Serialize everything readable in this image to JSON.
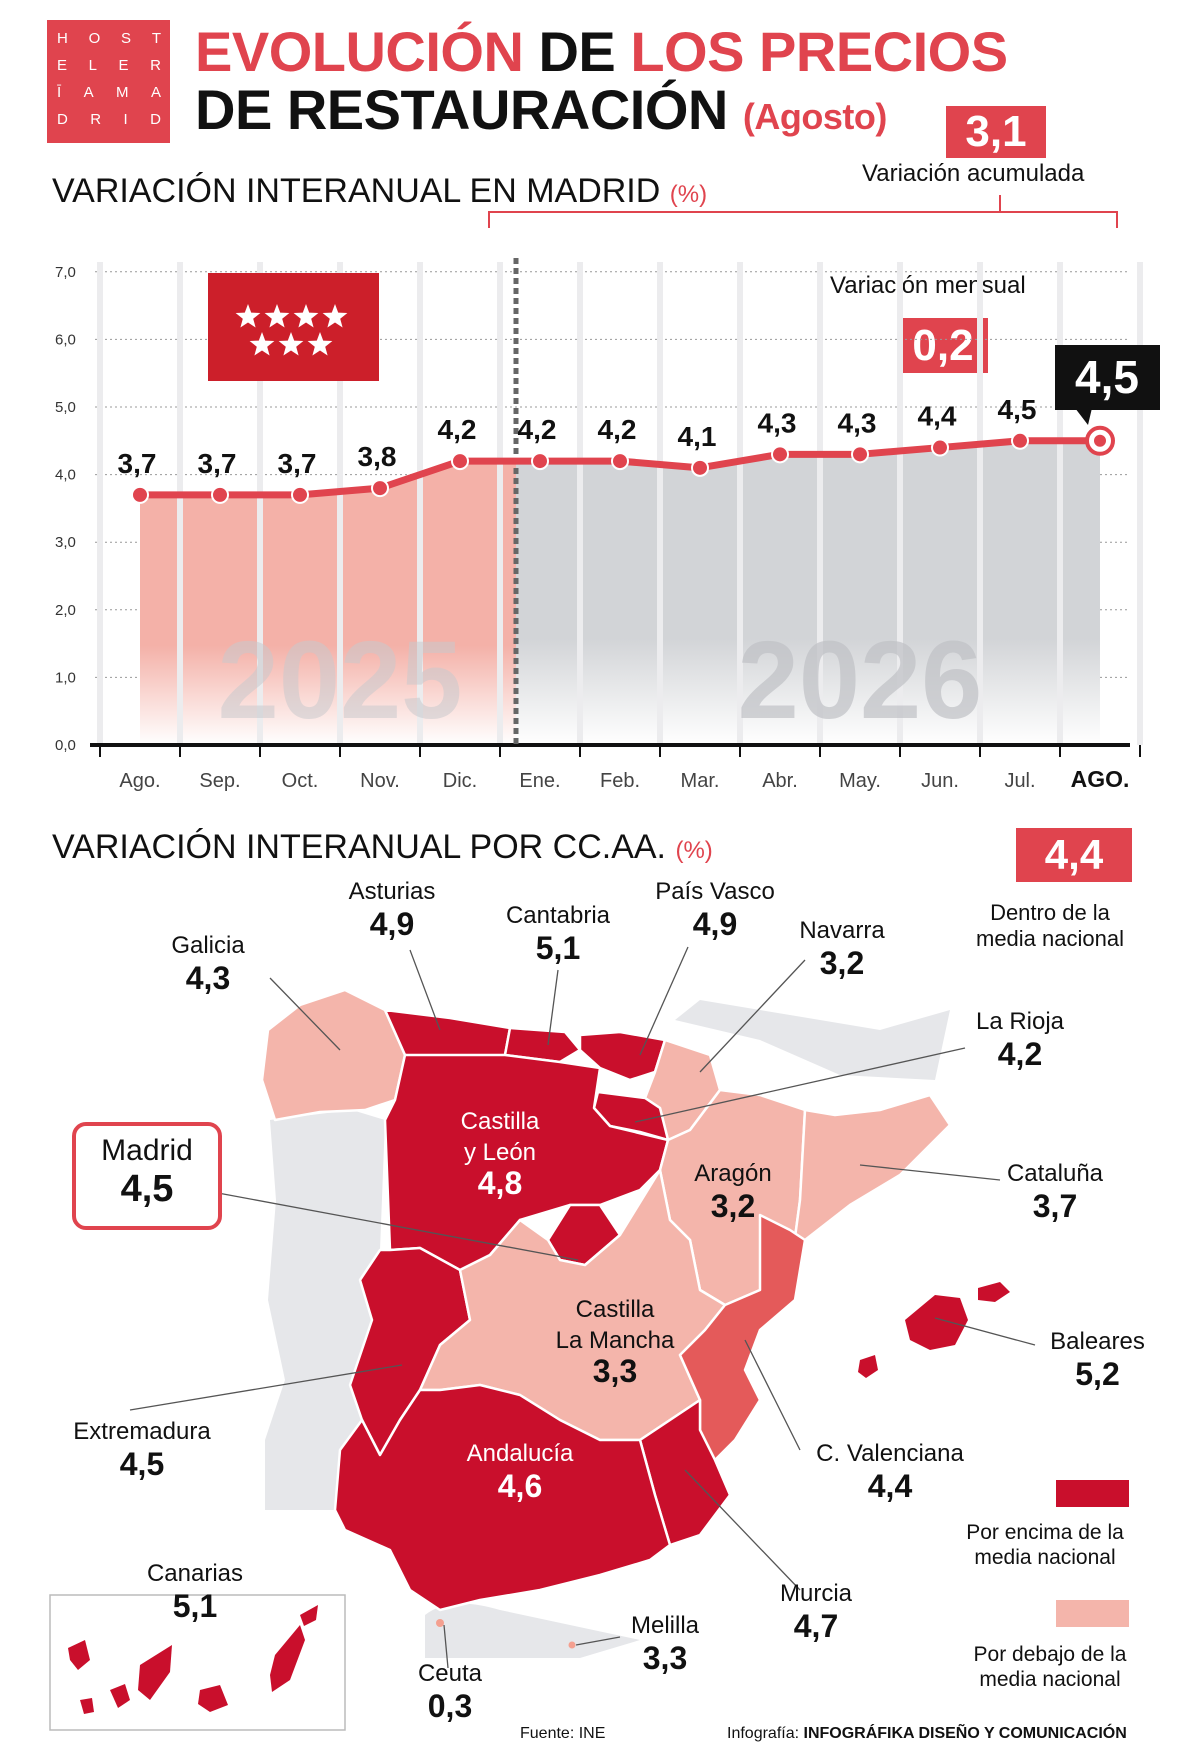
{
  "logo": {
    "lines": [
      [
        "H",
        "O",
        "S",
        "T"
      ],
      [
        "E",
        "L",
        "E",
        "R"
      ],
      [
        "Ī",
        "A",
        "M",
        "A"
      ],
      [
        "D",
        "R",
        "I",
        "D"
      ]
    ]
  },
  "header": {
    "title_part1": "EVOLUCIÓN",
    "title_part2": "DE",
    "title_part3": "LOS PRECIOS",
    "title_line2": "DE RESTAURACIÓN",
    "title_month": "(Agosto)"
  },
  "madrid_section": {
    "title": "VARIACIÓN INTERANUAL EN MADRID",
    "unit": "(%)",
    "cumulative_value": "3,1",
    "cumulative_label": "Variación acumulada",
    "monthly_value": "0,2",
    "monthly_label": "Variación mensual",
    "current_value": "4,5"
  },
  "chart_data": {
    "type": "line",
    "title": "VARIACIÓN INTERANUAL EN MADRID",
    "unit": "(%)",
    "categories": [
      "Ago.",
      "Sep.",
      "Oct.",
      "Nov.",
      "Dic.",
      "Ene.",
      "Feb.",
      "Mar.",
      "Abr.",
      "May.",
      "Jun.",
      "Jul.",
      "AGO."
    ],
    "values": [
      3.7,
      3.7,
      3.7,
      3.8,
      4.2,
      4.2,
      4.2,
      4.1,
      4.3,
      4.3,
      4.4,
      4.5,
      4.5
    ],
    "data_labels": [
      "3,7",
      "3,7",
      "3,7",
      "3,8",
      "4,2",
      "4,2",
      "4,2",
      "4,1",
      "4,3",
      "4,3",
      "4,4",
      "4,5",
      "4,5"
    ],
    "ylim": [
      0,
      7
    ],
    "yticks": [
      "0,0",
      "1,0",
      "2,0",
      "3,0",
      "4,0",
      "5,0",
      "6,0",
      "7,0"
    ],
    "year_labels": [
      "2025",
      "2026"
    ],
    "grid": true,
    "colors": {
      "line": "#e0444e",
      "area_2025": "#f4b1a8",
      "area_2026": "#d2d4d7"
    }
  },
  "regions_section": {
    "title": "VARIACIÓN INTERANUAL POR CC.AA.",
    "unit": "(%)",
    "national_value": "4,4",
    "national_label_1": "Dentro de la",
    "national_label_2": "media nacional",
    "regions": {
      "asturias": {
        "name": "Asturias",
        "value": "4,9"
      },
      "cantabria": {
        "name": "Cantabria",
        "value": "5,1"
      },
      "pais_vasco": {
        "name": "País Vasco",
        "value": "4,9"
      },
      "galicia": {
        "name": "Galicia",
        "value": "4,3"
      },
      "navarra": {
        "name": "Navarra",
        "value": "3,2"
      },
      "la_rioja": {
        "name": "La Rioja",
        "value": "4,2"
      },
      "castilla_leon": {
        "name1": "Castilla",
        "name2": "y León",
        "value": "4,8"
      },
      "madrid": {
        "name": "Madrid",
        "value": "4,5"
      },
      "aragon": {
        "name": "Aragón",
        "value": "3,2"
      },
      "cataluna": {
        "name": "Cataluña",
        "value": "3,7"
      },
      "castilla_mancha": {
        "name1": "Castilla",
        "name2": "La Mancha",
        "value": "3,3"
      },
      "baleares": {
        "name": "Baleares",
        "value": "5,2"
      },
      "extremadura": {
        "name": "Extremadura",
        "value": "4,5"
      },
      "andalucia": {
        "name": "Andalucía",
        "value": "4,6"
      },
      "valenciana": {
        "name": "C. Valenciana",
        "value": "4,4"
      },
      "murcia": {
        "name": "Murcia",
        "value": "4,7"
      },
      "canarias": {
        "name": "Canarias",
        "value": "5,1"
      },
      "ceuta": {
        "name": "Ceuta",
        "value": "0,3"
      },
      "melilla": {
        "name": "Melilla",
        "value": "3,3"
      }
    },
    "legend": {
      "above_1": "Por encima de la",
      "above_2": "media nacional",
      "below_1": "Por debajo de la",
      "below_2": "media nacional"
    },
    "colors": {
      "above": "#c90f2c",
      "equal": "#e45a5a",
      "below": "#f4b5ab",
      "outside": "#e6e7ea"
    }
  },
  "footer": {
    "source": "Fuente: INE",
    "credit_prefix": "Infografía: ",
    "credit_name": "INFOGRÁFIKA DISEÑO Y COMUNICACIÓN"
  }
}
